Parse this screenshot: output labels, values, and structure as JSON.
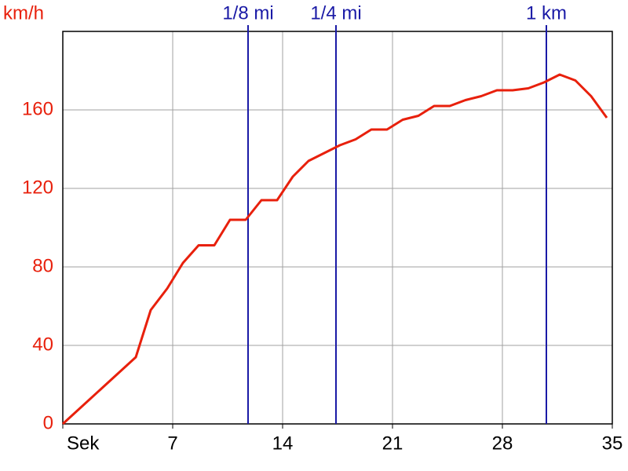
{
  "chart_data": {
    "type": "line",
    "y_label": "km/h",
    "x": [
      0,
      4.65,
      5.6,
      6.65,
      7.65,
      8.65,
      9.65,
      10.65,
      11.65,
      12.65,
      13.65,
      14.65,
      15.65,
      16.65,
      17.65,
      18.65,
      19.65,
      20.65,
      21.65,
      22.65,
      23.65,
      24.65,
      25.65,
      26.65,
      27.65,
      28.65,
      29.65,
      30.65,
      31.65,
      32.65,
      33.65,
      34.65
    ],
    "series": [
      {
        "color": "#e8200c",
        "values": [
          0,
          34,
          58,
          69,
          82,
          91,
          91,
          104,
          104,
          114,
          114,
          126,
          134,
          138,
          142,
          145,
          150,
          150,
          155,
          157,
          162,
          162,
          165,
          167,
          170,
          170,
          171,
          174,
          178,
          175,
          167,
          156
        ]
      }
    ],
    "xlim": [
      0,
      35
    ],
    "xticks": [
      {
        "value": 0,
        "label": "Sek"
      },
      7,
      14,
      21,
      28,
      35
    ],
    "ylim": [
      0,
      200
    ],
    "yticks": [
      0,
      40,
      80,
      120,
      160
    ],
    "grid": true,
    "markers": [
      {
        "label": "1/8 mi",
        "x": 11.8
      },
      {
        "label": "1/4 mi",
        "x": 17.4
      },
      {
        "label": "1 km",
        "x": 30.8
      }
    ],
    "marker_color": "#1a1aa6",
    "axis_label_color": "#e8200c"
  }
}
